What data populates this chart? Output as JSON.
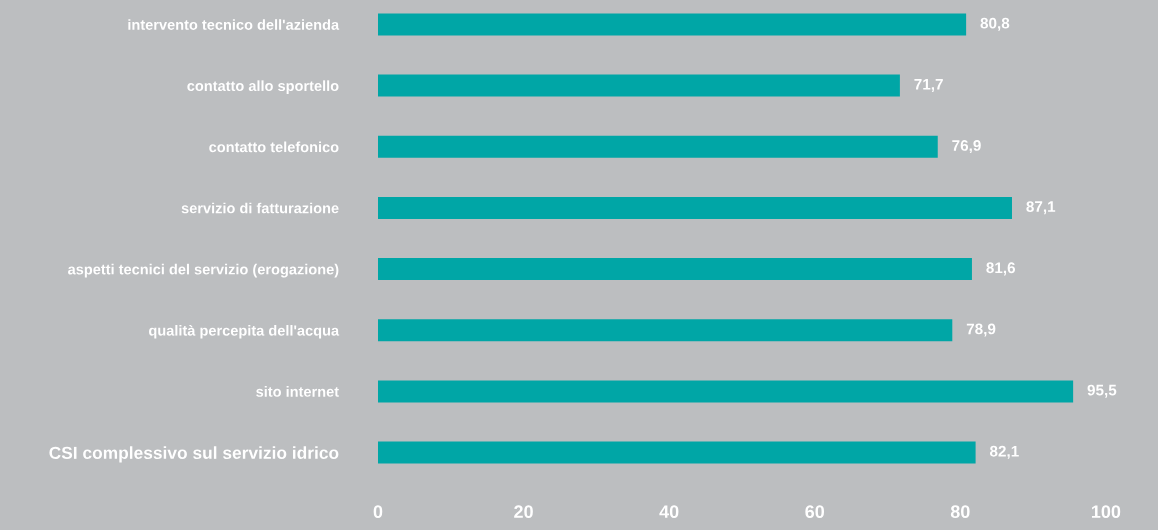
{
  "chart_data": {
    "type": "bar",
    "orientation": "horizontal",
    "categories": [
      "intervento tecnico dell'azienda",
      "contatto allo sportello",
      "contatto telefonico",
      "servizio di fatturazione",
      "aspetti tecnici del servizio (erogazione)",
      "qualità percepita dell'acqua",
      "sito internet",
      "CSI complessivo sul servizio idrico"
    ],
    "values": [
      80.8,
      71.7,
      76.9,
      87.1,
      81.6,
      78.9,
      95.5,
      82.1
    ],
    "value_labels": [
      "80,8",
      "71,7",
      "76,9",
      "87,1",
      "81,6",
      "78,9",
      "95,5",
      "82,1"
    ],
    "color": "#00a6a6",
    "xlim": [
      0,
      100
    ],
    "xticks": [
      0,
      20,
      40,
      60,
      80,
      100
    ],
    "grid": false,
    "legend": false
  }
}
